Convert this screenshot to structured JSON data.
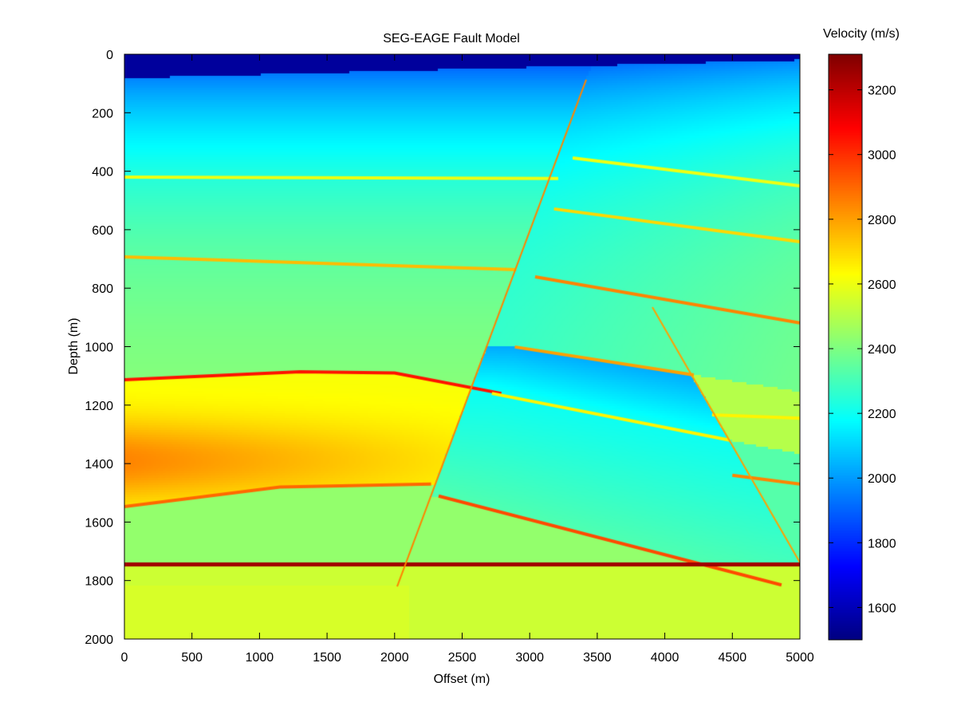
{
  "chart_data": {
    "type": "heatmap",
    "title": "SEG-EAGE Fault Model",
    "xlabel": "Offset (m)",
    "ylabel": "Depth (m)",
    "colorbar_label": "Velocity (m/s)",
    "colormap": "jet",
    "xlim": [
      0,
      5000
    ],
    "ylim": [
      2000,
      0
    ],
    "clim": [
      1500,
      3310
    ],
    "x_ticks": [
      0,
      500,
      1000,
      1500,
      2000,
      2500,
      3000,
      3500,
      4000,
      4500,
      5000
    ],
    "y_ticks": [
      0,
      200,
      400,
      600,
      800,
      1000,
      1200,
      1400,
      1600,
      1800,
      2000
    ],
    "colorbar_ticks": [
      1600,
      1800,
      2000,
      2200,
      2400,
      2600,
      2800,
      3000,
      3200
    ],
    "faults": [
      {
        "points": [
          [
            3418,
            87
          ],
          [
            2019,
            1820
          ]
        ],
        "velocity": 2850
      },
      {
        "points": [
          [
            3908,
            865
          ],
          [
            5000,
            1738
          ]
        ],
        "velocity": 2800
      }
    ],
    "horizons": [
      {
        "points": [
          [
            0,
            420
          ],
          [
            3211,
            425
          ]
        ],
        "velocity": 2600
      },
      {
        "points": [
          [
            3318,
            355
          ],
          [
            5000,
            450
          ]
        ],
        "velocity": 2600
      },
      {
        "points": [
          [
            0,
            693
          ],
          [
            2900,
            737
          ]
        ],
        "velocity": 2750
      },
      {
        "points": [
          [
            3180,
            529
          ],
          [
            5000,
            641
          ]
        ],
        "velocity": 2700
      },
      {
        "points": [
          [
            0,
            1113
          ],
          [
            1300,
            1086
          ],
          [
            2000,
            1090
          ],
          [
            2790,
            1160
          ]
        ],
        "velocity": 3050
      },
      {
        "points": [
          [
            3040,
            761
          ],
          [
            5000,
            919
          ]
        ],
        "velocity": 2850
      },
      {
        "points": [
          [
            2890,
            1001
          ],
          [
            4215,
            1097
          ]
        ],
        "velocity": 2800
      },
      {
        "points": [
          [
            2720,
            1160
          ],
          [
            4480,
            1320
          ]
        ],
        "velocity": 2650
      },
      {
        "points": [
          [
            4350,
            1233
          ],
          [
            5000,
            1245
          ]
        ],
        "velocity": 2650
      },
      {
        "points": [
          [
            4500,
            1440
          ],
          [
            5000,
            1470
          ]
        ],
        "velocity": 2850
      },
      {
        "points": [
          [
            0,
            1547
          ],
          [
            1150,
            1480
          ],
          [
            2270,
            1470
          ]
        ],
        "velocity": 2900
      },
      {
        "points": [
          [
            2326,
            1511
          ],
          [
            4864,
            1815
          ]
        ],
        "velocity": 2950
      },
      {
        "points": [
          [
            0,
            1745
          ],
          [
            5000,
            1745
          ]
        ],
        "velocity": 3250
      }
    ]
  }
}
